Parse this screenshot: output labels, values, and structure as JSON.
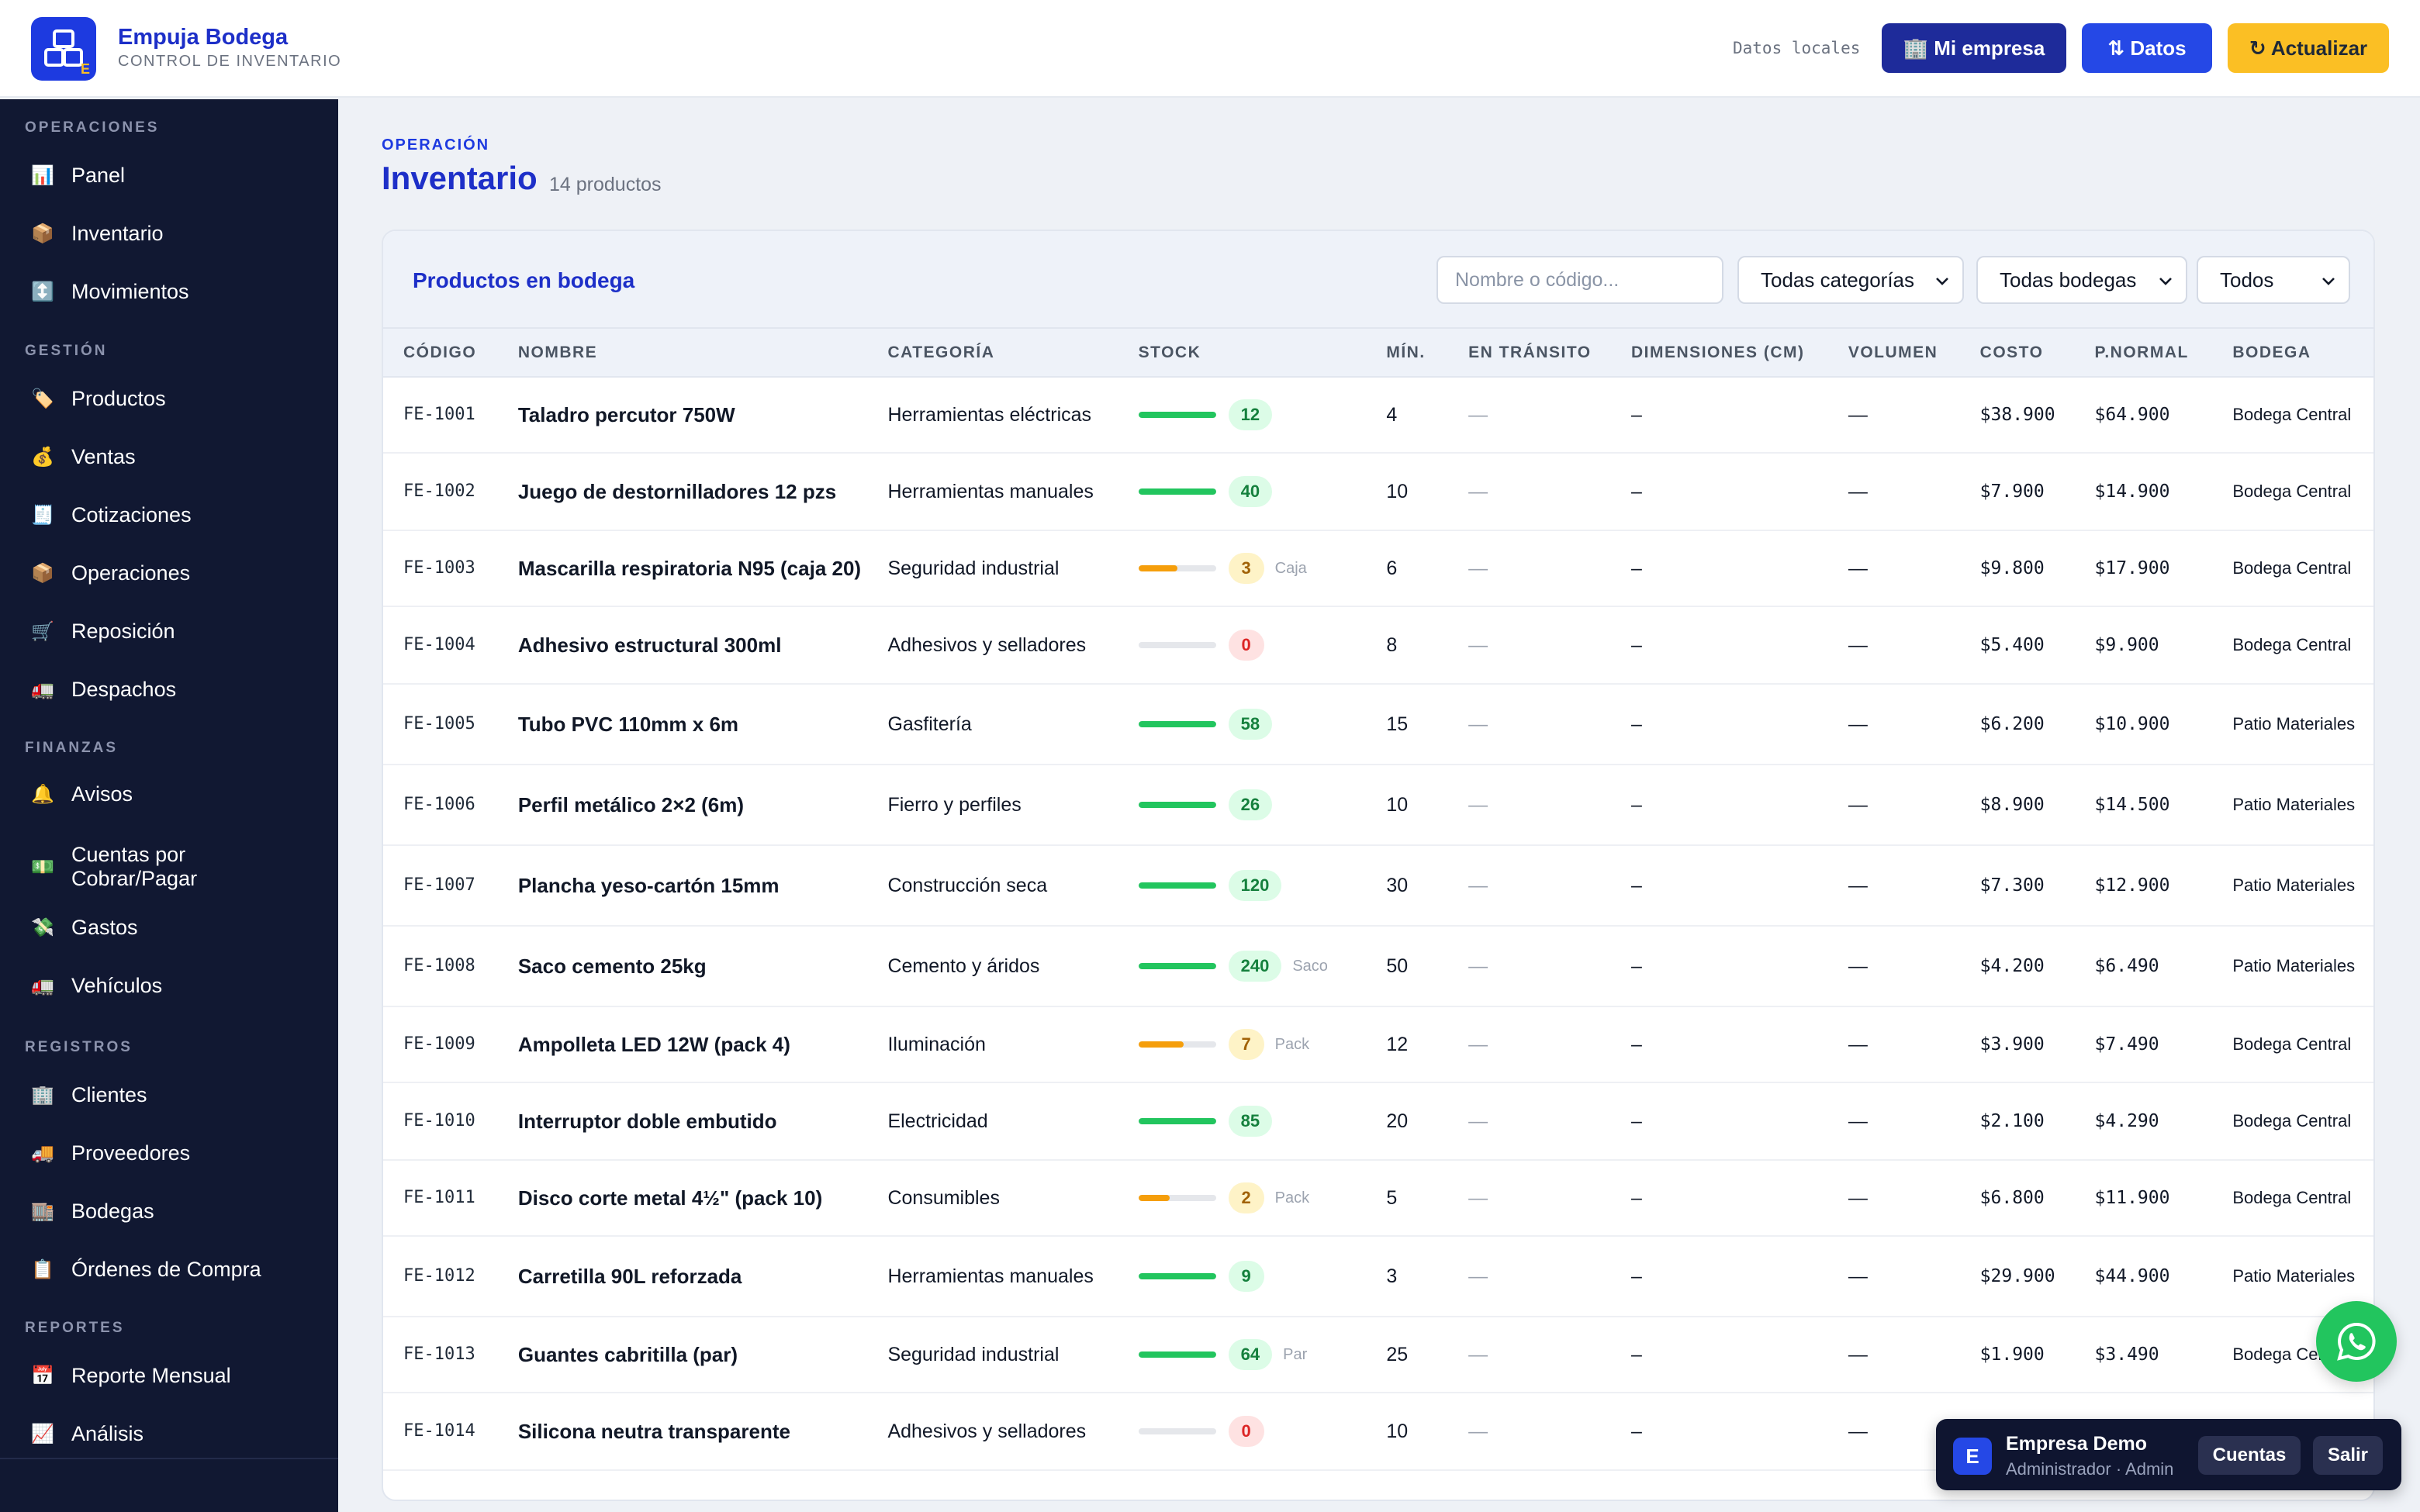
{
  "header": {
    "app_title": "Empuja Bodega",
    "app_subtitle": "CONTROL DE INVENTARIO",
    "logo_badge": "E",
    "local_label": "Datos locales",
    "btn_empresa": "🏢 Mi empresa",
    "btn_datos": "⇅ Datos",
    "btn_actualizar": "↻ Actualizar"
  },
  "sidebar": {
    "sections": [
      {
        "label": "OPERACIONES",
        "items": [
          {
            "icon": "📊",
            "label": "Panel"
          },
          {
            "icon": "📦",
            "label": "Inventario"
          },
          {
            "icon": "↕️",
            "label": "Movimientos"
          }
        ]
      },
      {
        "label": "GESTIÓN",
        "items": [
          {
            "icon": "🏷️",
            "label": "Productos"
          },
          {
            "icon": "💰",
            "label": "Ventas"
          },
          {
            "icon": "🧾",
            "label": "Cotizaciones"
          },
          {
            "icon": "📦",
            "label": "Operaciones"
          },
          {
            "icon": "🛒",
            "label": "Reposición"
          },
          {
            "icon": "🚛",
            "label": "Despachos"
          }
        ]
      },
      {
        "label": "FINANZAS",
        "items": [
          {
            "icon": "🔔",
            "label": "Avisos"
          },
          {
            "icon": "💵",
            "label": "Cuentas por Cobrar/Pagar"
          },
          {
            "icon": "💸",
            "label": "Gastos"
          },
          {
            "icon": "🚛",
            "label": "Vehículos"
          }
        ]
      },
      {
        "label": "REGISTROS",
        "items": [
          {
            "icon": "🏢",
            "label": "Clientes"
          },
          {
            "icon": "🚚",
            "label": "Proveedores"
          },
          {
            "icon": "🏬",
            "label": "Bodegas"
          },
          {
            "icon": "📋",
            "label": "Órdenes de Compra"
          }
        ]
      },
      {
        "label": "REPORTES",
        "items": [
          {
            "icon": "📅",
            "label": "Reporte Mensual"
          },
          {
            "icon": "📈",
            "label": "Análisis"
          }
        ]
      }
    ]
  },
  "page": {
    "eyebrow": "OPERACIÓN",
    "title": "Inventario",
    "count": "14 productos"
  },
  "card": {
    "title": "Productos en bodega",
    "search_placeholder": "Nombre o código...",
    "filter_category": "Todas categorías",
    "filter_bodega": "Todas bodegas",
    "filter_status": "Todos"
  },
  "table": {
    "columns": [
      "CÓDIGO",
      "NOMBRE",
      "CATEGORÍA",
      "STOCK",
      "MÍN.",
      "EN TRÁNSITO",
      "DIMENSIONES (CM)",
      "VOLUMEN",
      "COSTO",
      "P.NORMAL",
      "BODEGA"
    ],
    "rows": [
      {
        "code": "FE-1001",
        "name": "Taladro percutor 750W",
        "category": "Herramientas eléctricas",
        "stock": "12",
        "level": 1.0,
        "status": "green",
        "unit": "",
        "min": "4",
        "transit": "—",
        "dims": "–",
        "volume": "—",
        "cost": "$38.900",
        "price": "$64.900",
        "bodega": "Bodega Central"
      },
      {
        "code": "FE-1002",
        "name": "Juego de destornilladores 12 pzs",
        "category": "Herramientas manuales",
        "stock": "40",
        "level": 1.0,
        "status": "green",
        "unit": "",
        "min": "10",
        "transit": "—",
        "dims": "–",
        "volume": "—",
        "cost": "$7.900",
        "price": "$14.900",
        "bodega": "Bodega Central"
      },
      {
        "code": "FE-1003",
        "name": "Mascarilla respiratoria N95 (caja 20)",
        "category": "Seguridad industrial",
        "stock": "3",
        "level": 0.5,
        "status": "yellow",
        "unit": "Caja",
        "min": "6",
        "transit": "—",
        "dims": "–",
        "volume": "—",
        "cost": "$9.800",
        "price": "$17.900",
        "bodega": "Bodega Central"
      },
      {
        "code": "FE-1004",
        "name": "Adhesivo estructural 300ml",
        "category": "Adhesivos y selladores",
        "stock": "0",
        "level": 0.0,
        "status": "red",
        "unit": "",
        "min": "8",
        "transit": "—",
        "dims": "–",
        "volume": "—",
        "cost": "$5.400",
        "price": "$9.900",
        "bodega": "Bodega Central"
      },
      {
        "code": "FE-1005",
        "name": "Tubo PVC 110mm x 6m",
        "category": "Gasfitería",
        "stock": "58",
        "level": 1.0,
        "status": "green",
        "unit": "",
        "min": "15",
        "transit": "—",
        "dims": "–",
        "volume": "—",
        "cost": "$6.200",
        "price": "$10.900",
        "bodega": "Patio Materiales"
      },
      {
        "code": "FE-1006",
        "name": "Perfil metálico 2×2 (6m)",
        "category": "Fierro y perfiles",
        "stock": "26",
        "level": 1.0,
        "status": "green",
        "unit": "",
        "min": "10",
        "transit": "—",
        "dims": "–",
        "volume": "—",
        "cost": "$8.900",
        "price": "$14.500",
        "bodega": "Patio Materiales"
      },
      {
        "code": "FE-1007",
        "name": "Plancha yeso-cartón 15mm",
        "category": "Construcción seca",
        "stock": "120",
        "level": 1.0,
        "status": "green",
        "unit": "",
        "min": "30",
        "transit": "—",
        "dims": "–",
        "volume": "—",
        "cost": "$7.300",
        "price": "$12.900",
        "bodega": "Patio Materiales"
      },
      {
        "code": "FE-1008",
        "name": "Saco cemento 25kg",
        "category": "Cemento y áridos",
        "stock": "240",
        "level": 1.0,
        "status": "green",
        "unit": "Saco",
        "min": "50",
        "transit": "—",
        "dims": "–",
        "volume": "—",
        "cost": "$4.200",
        "price": "$6.490",
        "bodega": "Patio Materiales"
      },
      {
        "code": "FE-1009",
        "name": "Ampolleta LED 12W (pack 4)",
        "category": "Iluminación",
        "stock": "7",
        "level": 0.58,
        "status": "yellow",
        "unit": "Pack",
        "min": "12",
        "transit": "—",
        "dims": "–",
        "volume": "—",
        "cost": "$3.900",
        "price": "$7.490",
        "bodega": "Bodega Central"
      },
      {
        "code": "FE-1010",
        "name": "Interruptor doble embutido",
        "category": "Electricidad",
        "stock": "85",
        "level": 1.0,
        "status": "green",
        "unit": "",
        "min": "20",
        "transit": "—",
        "dims": "–",
        "volume": "—",
        "cost": "$2.100",
        "price": "$4.290",
        "bodega": "Bodega Central"
      },
      {
        "code": "FE-1011",
        "name": "Disco corte metal 4½\" (pack 10)",
        "category": "Consumibles",
        "stock": "2",
        "level": 0.4,
        "status": "yellow",
        "unit": "Pack",
        "min": "5",
        "transit": "—",
        "dims": "–",
        "volume": "—",
        "cost": "$6.800",
        "price": "$11.900",
        "bodega": "Bodega Central"
      },
      {
        "code": "FE-1012",
        "name": "Carretilla 90L reforzada",
        "category": "Herramientas manuales",
        "stock": "9",
        "level": 1.0,
        "status": "green",
        "unit": "",
        "min": "3",
        "transit": "—",
        "dims": "–",
        "volume": "—",
        "cost": "$29.900",
        "price": "$44.900",
        "bodega": "Patio Materiales"
      },
      {
        "code": "FE-1013",
        "name": "Guantes cabritilla (par)",
        "category": "Seguridad industrial",
        "stock": "64",
        "level": 1.0,
        "status": "green",
        "unit": "Par",
        "min": "25",
        "transit": "—",
        "dims": "–",
        "volume": "—",
        "cost": "$1.900",
        "price": "$3.490",
        "bodega": "Bodega Central"
      },
      {
        "code": "FE-1014",
        "name": "Silicona neutra transparente",
        "category": "Adhesivos y selladores",
        "stock": "0",
        "level": 0.0,
        "status": "red",
        "unit": "",
        "min": "10",
        "transit": "—",
        "dims": "–",
        "volume": "—",
        "cost": "",
        "price": "",
        "bodega": ""
      }
    ]
  },
  "colors": {
    "green": "#22c55e",
    "yellow": "#f59e0b",
    "red": "#e5e7eb"
  },
  "account": {
    "avatar": "E",
    "name": "Empresa Demo",
    "role": "Administrador · Admin",
    "btn_cuentas": "Cuentas",
    "btn_salir": "Salir"
  }
}
